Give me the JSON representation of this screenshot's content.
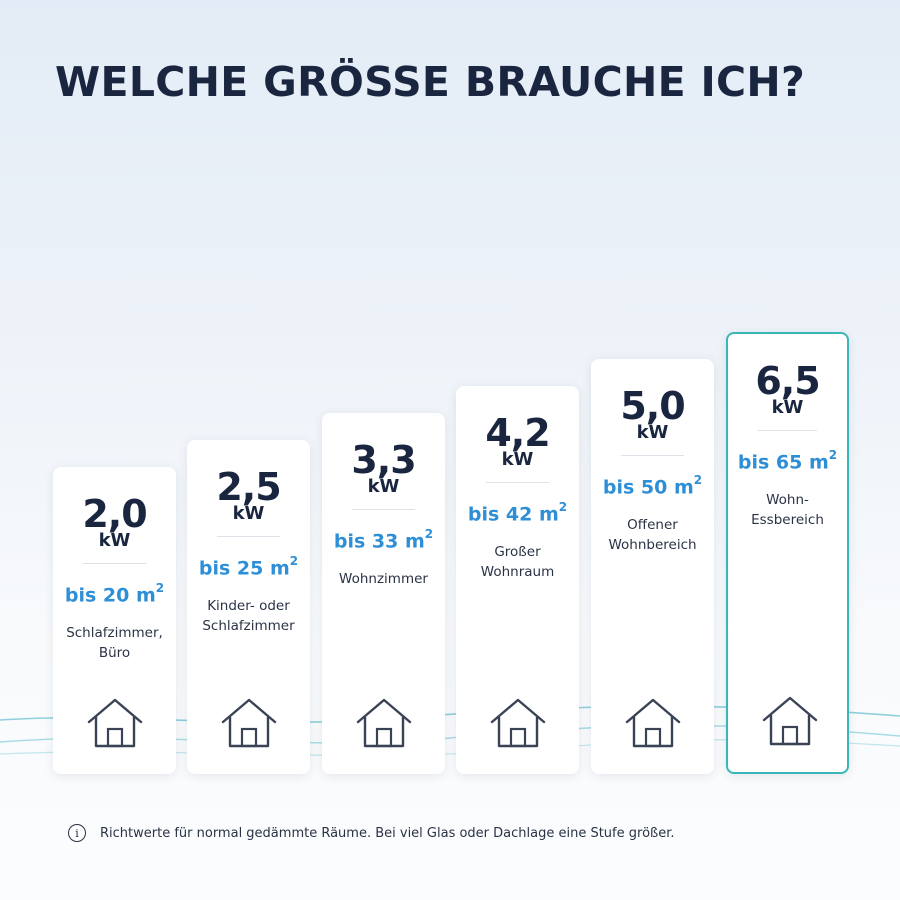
{
  "title": "WELCHE GRÖSSE BRAUCHE ICH?",
  "accent_color": "#2e8fd6",
  "highlight_color": "#3bb6b6",
  "cards": [
    {
      "power": "2,0",
      "unit": "kW",
      "area": "bis 20 m",
      "area_sup": "2",
      "room": "Schlafzimmer, Büro",
      "icon": "house-icon",
      "highlighted": false
    },
    {
      "power": "2,5",
      "unit": "kW",
      "area": "bis 25 m",
      "area_sup": "2",
      "room": "Kinder- oder Schlafzimmer",
      "icon": "house-icon",
      "highlighted": false
    },
    {
      "power": "3,3",
      "unit": "kW",
      "area": "bis 33 m",
      "area_sup": "2",
      "room": "Wohnzimmer",
      "icon": "house-icon",
      "highlighted": false
    },
    {
      "power": "4,2",
      "unit": "kW",
      "area": "bis 42 m",
      "area_sup": "2",
      "room": "Großer Wohnraum",
      "icon": "house-icon",
      "highlighted": false
    },
    {
      "power": "5,0",
      "unit": "kW",
      "area": "bis 50 m",
      "area_sup": "2",
      "room": "Offener Wohnbereich",
      "icon": "house-icon",
      "highlighted": false
    },
    {
      "power": "6,5",
      "unit": "kW",
      "area": "bis 65 m",
      "area_sup": "2",
      "room": "Wohn-Essbereich",
      "icon": "house-icon",
      "highlighted": true
    }
  ],
  "note": {
    "icon": "info-icon",
    "icon_glyph": "i",
    "text": "Richtwerte für normal gedämmte Räume. Bei viel Glas oder Dachlage eine Stufe größer."
  }
}
